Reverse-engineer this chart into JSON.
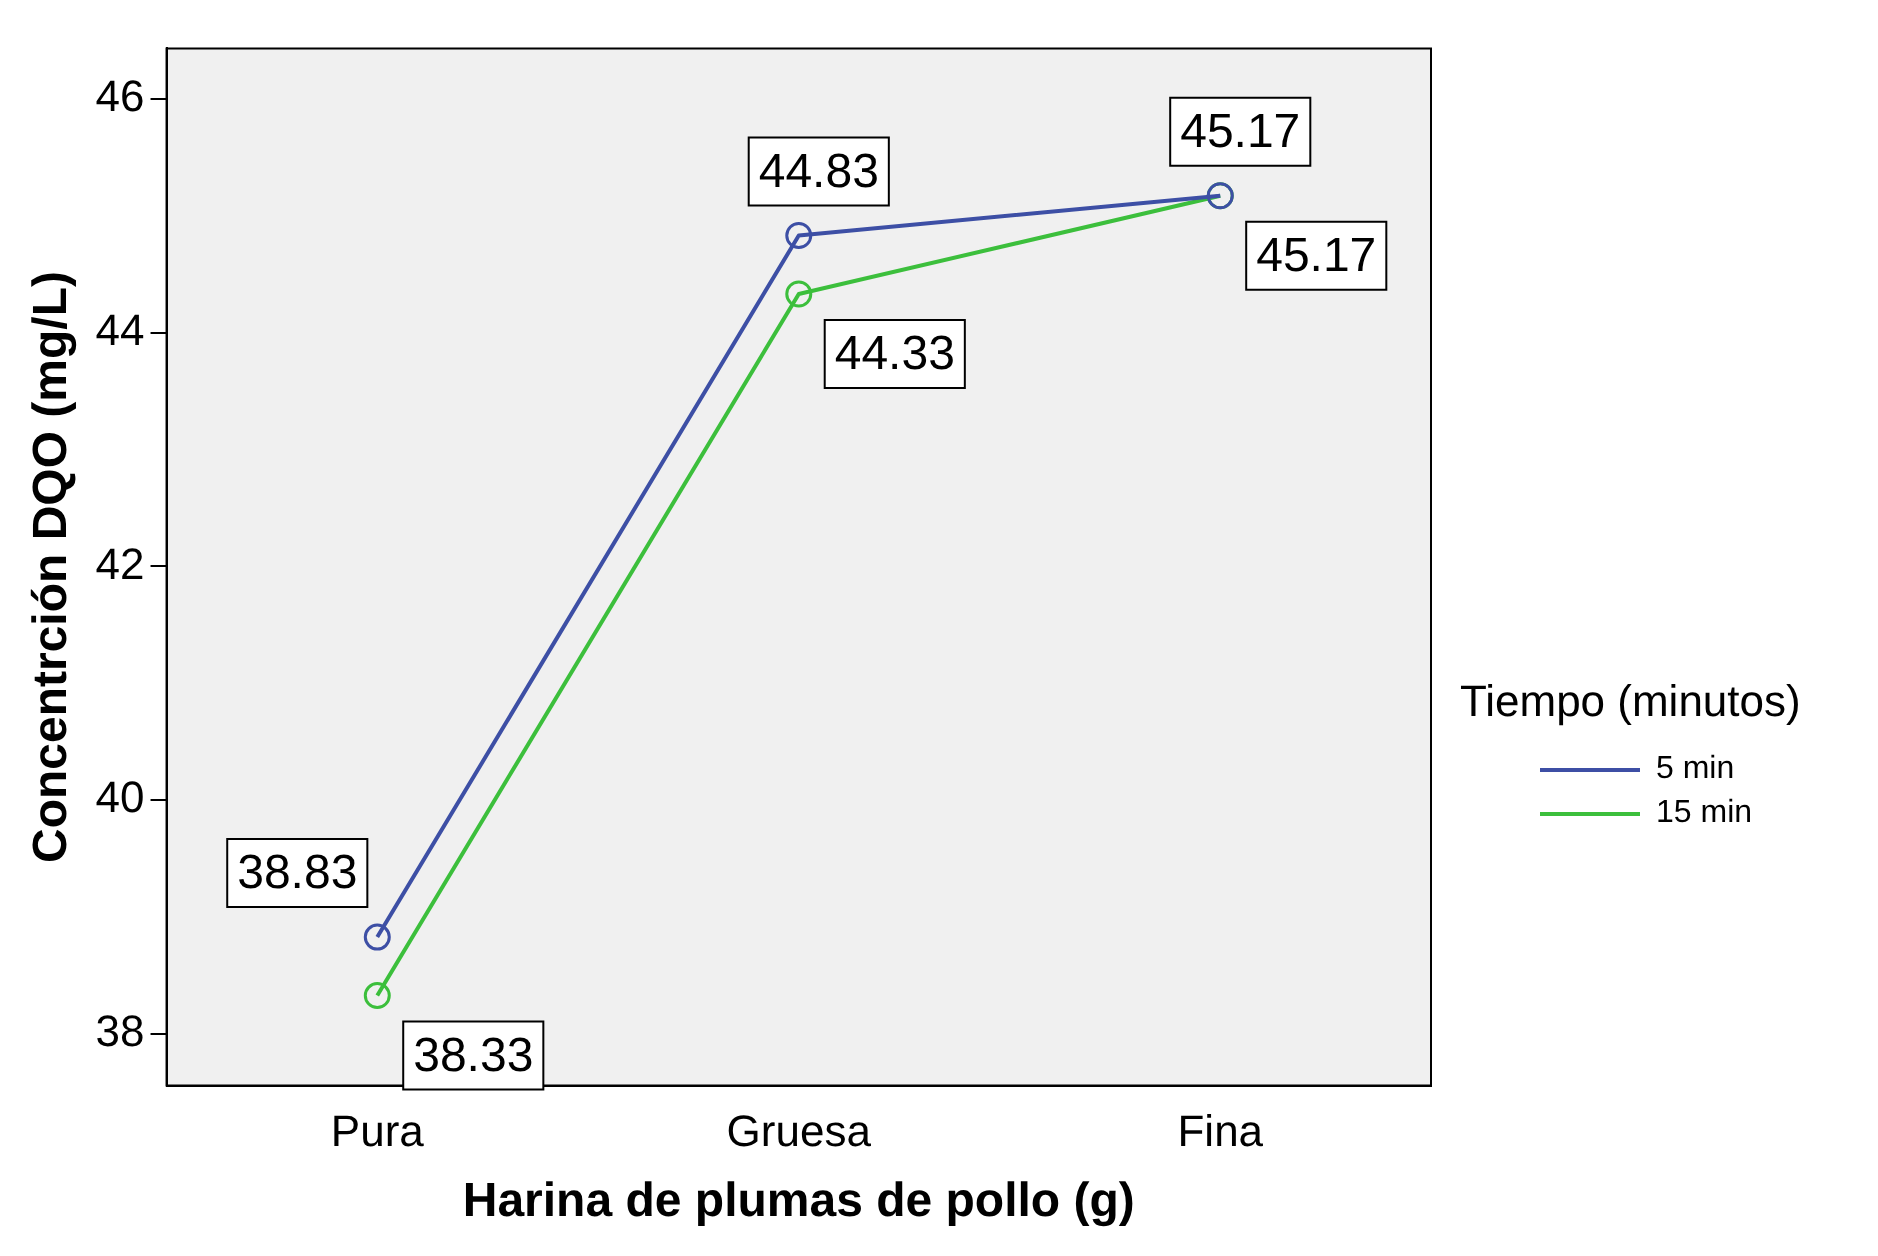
{
  "chart_data": {
    "type": "line",
    "xlabel": "Harina de plumas de pollo (g)",
    "ylabel": "Concentrción DQO (mg/L)",
    "legend_title": "Tiempo (minutos)",
    "categories": [
      "Pura",
      "Gruesa",
      "Fina"
    ],
    "series": [
      {
        "name": "5 min",
        "color": "#3d4fa5",
        "values": [
          38.83,
          44.83,
          45.17
        ]
      },
      {
        "name": "15 min",
        "color": "#3cbf3c",
        "values": [
          38.33,
          44.33,
          45.17
        ]
      }
    ],
    "ylim": [
      37.56,
      46.43
    ],
    "yticks": [
      38,
      40,
      42,
      44,
      46
    ],
    "grid": false,
    "legend": "right",
    "marker": "circle",
    "line_style": "solid",
    "data_labels": true
  }
}
